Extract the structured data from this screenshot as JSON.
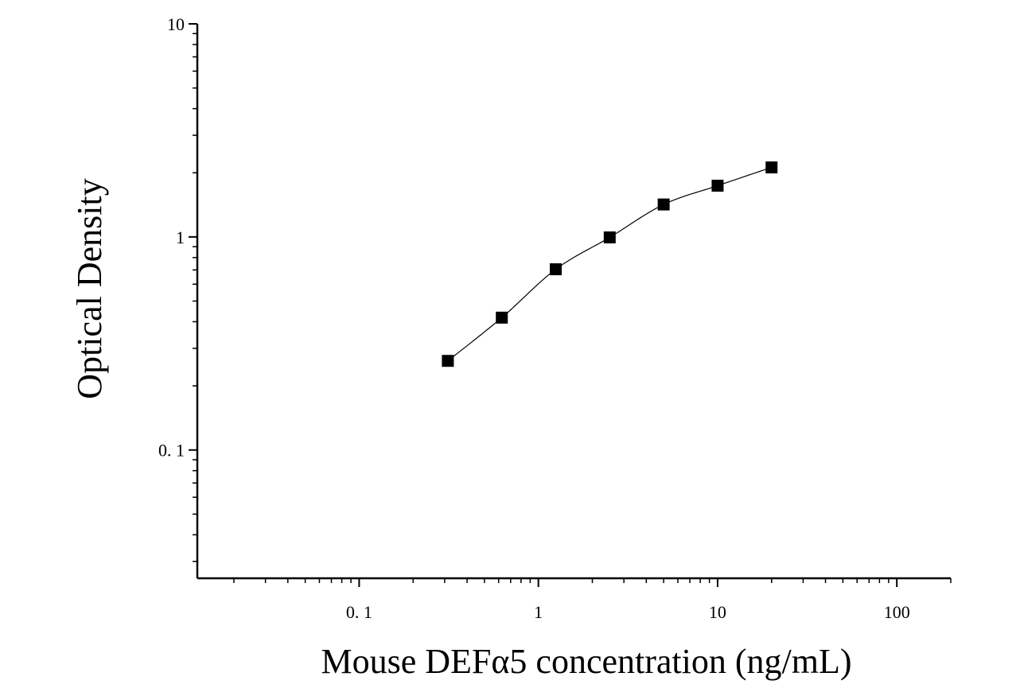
{
  "chart_data": {
    "type": "scatter",
    "title": "",
    "xlabel": "Mouse DEFα5 concentration (ng/mL)",
    "ylabel": "Optical Density",
    "x_scale": "log",
    "y_scale": "log",
    "xlim": [
      0.0125,
      200
    ],
    "ylim": [
      0.025,
      10
    ],
    "x_ticks": [
      {
        "value": 0.1,
        "label": "0. 1"
      },
      {
        "value": 1,
        "label": "1"
      },
      {
        "value": 10,
        "label": "10"
      },
      {
        "value": 100,
        "label": "100"
      }
    ],
    "y_ticks": [
      {
        "value": 0.1,
        "label": "0. 1"
      },
      {
        "value": 1,
        "label": "1"
      },
      {
        "value": 10,
        "label": "10"
      }
    ],
    "grid": false,
    "legend": "none",
    "series": [
      {
        "marker": "square",
        "fit_curve": true,
        "color": "#000000",
        "x": [
          0.3125,
          0.625,
          1.25,
          2.5,
          5,
          10,
          20
        ],
        "y": [
          0.262,
          0.418,
          0.705,
          0.995,
          1.42,
          1.74,
          2.12
        ]
      }
    ]
  }
}
